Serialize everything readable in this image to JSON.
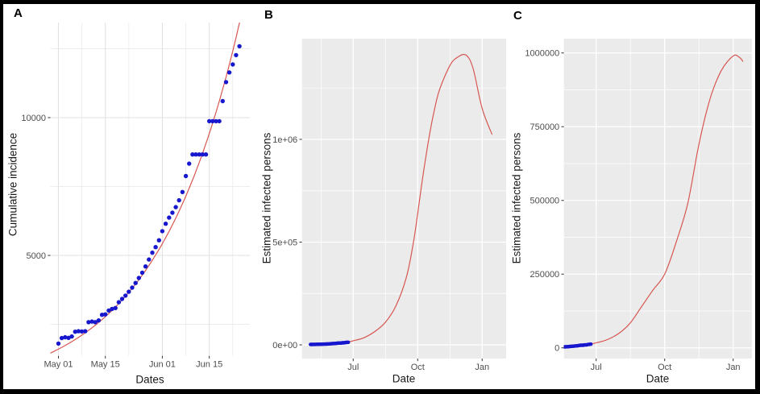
{
  "figure": {
    "description": "Three-panel epidemic model figure",
    "border_color": "#000000",
    "background_color": "#ffffff"
  },
  "colors": {
    "dot_blue": "#1717CE",
    "fit_red": "#D6514C",
    "panel_bg_gray": "#EBEBEB",
    "grid_white": "#FFFFFF",
    "grid_gray_major": "#E2E2E2",
    "grid_gray_minor": "#EDEDED",
    "tick_text": "#4D4D4D",
    "axis_title": "#191919",
    "tick_mark": "#333333"
  },
  "chart_data": [
    {
      "type": "scatter",
      "panel_label": "A",
      "xlabel": "Dates",
      "ylabel": "Cumulative incidence",
      "x_axis": {
        "unit": "days since May 01",
        "domain": [
          -2.4,
          57.1
        ],
        "major_ticks": [
          {
            "day": 0,
            "label": "May 01"
          },
          {
            "day": 14,
            "label": "May 15"
          },
          {
            "day": 31,
            "label": "Jun 01"
          },
          {
            "day": 45,
            "label": "Jun 15"
          }
        ],
        "minor_days": [
          7,
          21,
          38,
          52
        ]
      },
      "y_axis": {
        "domain": [
          1354,
          13450
        ],
        "major_ticks": [
          {
            "value": 5000,
            "label": "5000"
          },
          {
            "value": 10000,
            "label": "10000"
          }
        ],
        "minor_values": [
          2500,
          7500,
          12500
        ]
      },
      "points": {
        "days": [
          0,
          1,
          2,
          3,
          4,
          5,
          6,
          7,
          8,
          9,
          10,
          11,
          12,
          13,
          14,
          15,
          16,
          17,
          18,
          19,
          20,
          21,
          22,
          23,
          24,
          25,
          26,
          27,
          28,
          29,
          30,
          31,
          32,
          33,
          34,
          35,
          36,
          37,
          38,
          39,
          40,
          41,
          42,
          43,
          44,
          45,
          46,
          47,
          48,
          49,
          50,
          51,
          52,
          53,
          54
        ],
        "values": [
          1800,
          2000,
          2030,
          2010,
          2060,
          2230,
          2250,
          2240,
          2250,
          2580,
          2600,
          2580,
          2640,
          2845,
          2860,
          3000,
          3060,
          3090,
          3300,
          3420,
          3540,
          3680,
          3830,
          4000,
          4180,
          4370,
          4600,
          4850,
          5100,
          5300,
          5550,
          5880,
          6150,
          6370,
          6550,
          6750,
          7000,
          7300,
          7880,
          8330,
          8665,
          8665,
          8665,
          8665,
          8665,
          9870,
          9870,
          9870,
          9870,
          10600,
          11290,
          11640,
          11930,
          12270,
          12590
        ]
      },
      "fit_line": {
        "type": "exponential",
        "formula": "cases = 1600 * exp(0.0394 * day)",
        "a": 1600,
        "r": 0.0394,
        "day_start": -2.4,
        "day_end": 57.1
      },
      "style": {
        "theme": "white",
        "dot_radius": 2.7
      }
    },
    {
      "type": "scatter+curve",
      "panel_label": "B",
      "xlabel": "Date",
      "ylabel": "Estimated infected persons",
      "x_axis": {
        "unit": "days since May 01",
        "domain": [
          -12.1,
          279.2
        ],
        "major_ticks": [
          {
            "day": 61,
            "label": "Jul"
          },
          {
            "day": 153,
            "label": "Oct"
          },
          {
            "day": 245,
            "label": "Jan"
          }
        ],
        "minor_days": [
          15.5,
          107,
          199
        ]
      },
      "y_axis": {
        "domain": [
          -66700,
          1490000
        ],
        "major_ticks": [
          {
            "value": 0,
            "label": "0e+00"
          },
          {
            "value": 500000,
            "label": "5e+05"
          },
          {
            "value": 1000000,
            "label": "1e+06"
          }
        ],
        "minor_values": [
          250000,
          750000,
          1250000
        ]
      },
      "observed_points_ref": 0,
      "model_curve": {
        "peak_value": 1410000,
        "peak_day": 222,
        "keypoints_day_value": [
          [
            54,
            13000
          ],
          [
            61,
            20000
          ],
          [
            76,
            34000
          ],
          [
            92,
            65000
          ],
          [
            107,
            110000
          ],
          [
            122,
            190000
          ],
          [
            137,
            330000
          ],
          [
            147,
            500000
          ],
          [
            153,
            640000
          ],
          [
            160,
            810000
          ],
          [
            168,
            985000
          ],
          [
            176,
            1130000
          ],
          [
            184,
            1240000
          ],
          [
            199,
            1360000
          ],
          [
            210,
            1400000
          ],
          [
            222,
            1410000
          ],
          [
            232,
            1345000
          ],
          [
            245,
            1150000
          ],
          [
            259,
            1025000
          ]
        ]
      },
      "style": {
        "theme": "gray",
        "dot_radius": 2.2
      }
    },
    {
      "type": "scatter+curve",
      "panel_label": "C",
      "xlabel": "Date",
      "ylabel": "Estimated infected persons",
      "x_axis": {
        "unit": "days since May 01",
        "domain": [
          17.7,
          270.2
        ],
        "major_ticks": [
          {
            "day": 61,
            "label": "Jul"
          },
          {
            "day": 153,
            "label": "Oct"
          },
          {
            "day": 245,
            "label": "Jan"
          }
        ],
        "minor_days": [
          107,
          199
        ]
      },
      "y_axis": {
        "domain": [
          -36300,
          1048500
        ],
        "major_ticks": [
          {
            "value": 0,
            "label": "0"
          },
          {
            "value": 250000,
            "label": "250000"
          },
          {
            "value": 500000,
            "label": "500000"
          },
          {
            "value": 750000,
            "label": "750000"
          },
          {
            "value": 1000000,
            "label": "1000000"
          }
        ],
        "minor_values": [
          125000,
          375000,
          625000,
          875000
        ]
      },
      "observed_points_ref": 0,
      "model_curve": {
        "peak_value": 991000,
        "peak_day": 248,
        "keypoints_day_value": [
          [
            54,
            13000
          ],
          [
            61,
            17000
          ],
          [
            76,
            28000
          ],
          [
            92,
            50000
          ],
          [
            107,
            85000
          ],
          [
            122,
            140000
          ],
          [
            137,
            195000
          ],
          [
            153,
            250000
          ],
          [
            168,
            355000
          ],
          [
            184,
            490000
          ],
          [
            199,
            690000
          ],
          [
            214,
            845000
          ],
          [
            229,
            940000
          ],
          [
            245,
            990000
          ],
          [
            253,
            986000
          ],
          [
            258,
            972000
          ]
        ]
      },
      "style": {
        "theme": "gray",
        "dot_radius": 2.2
      }
    }
  ]
}
